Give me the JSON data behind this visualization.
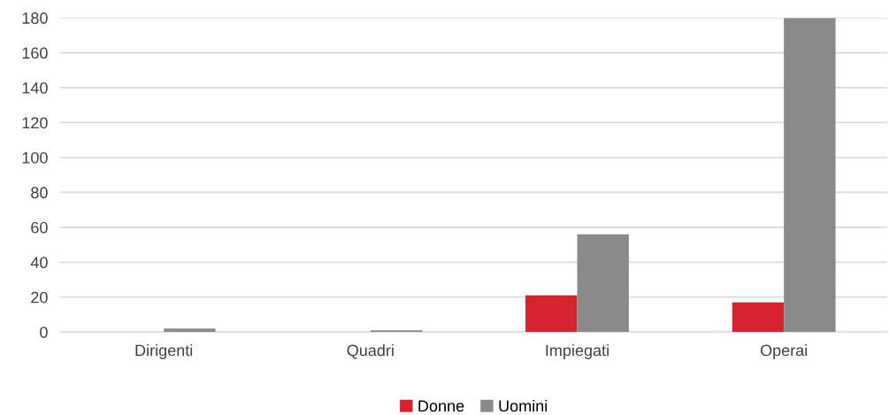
{
  "chart_data": {
    "type": "bar",
    "categories": [
      "Dirigenti",
      "Quadri",
      "Impiegati",
      "Operai"
    ],
    "series": [
      {
        "name": "Donne",
        "color": "#d7222f",
        "values": [
          0,
          0,
          21,
          17
        ]
      },
      {
        "name": "Uomini",
        "color": "#8a8a8a",
        "values": [
          2,
          1,
          56,
          180
        ]
      }
    ],
    "ylim": [
      0,
      180
    ],
    "yticks": [
      0,
      20,
      40,
      60,
      80,
      100,
      120,
      140,
      160,
      180
    ],
    "grid": "y",
    "legend": "bottom"
  }
}
